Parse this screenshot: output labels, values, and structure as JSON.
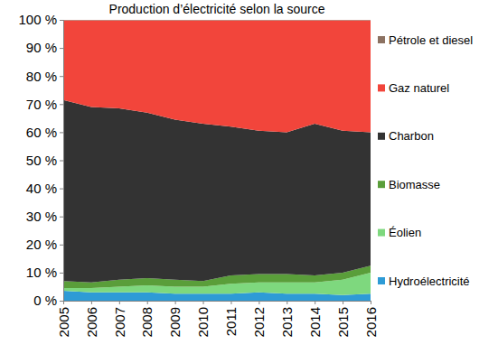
{
  "chart_data": {
    "type": "area",
    "title": "Production d’électricité selon la source",
    "stacked": true,
    "legend": "right",
    "grid": false,
    "x": [
      2005,
      2006,
      2007,
      2008,
      2009,
      2010,
      2011,
      2012,
      2013,
      2014,
      2015,
      2016
    ],
    "xlim": [
      2005,
      2016
    ],
    "xticks": [
      2005,
      2006,
      2007,
      2008,
      2009,
      2010,
      2011,
      2012,
      2013,
      2014,
      2015,
      2016
    ],
    "ylim": [
      0,
      100
    ],
    "yticks": [
      {
        "value": 0,
        "label": "0 %"
      },
      {
        "value": 10,
        "label": "10 %"
      },
      {
        "value": 20,
        "label": "20 %"
      },
      {
        "value": 30,
        "label": "30 %"
      },
      {
        "value": 40,
        "label": "40 %"
      },
      {
        "value": 50,
        "label": "50 %"
      },
      {
        "value": 60,
        "label": "60 %"
      },
      {
        "value": 70,
        "label": "70 %"
      },
      {
        "value": 80,
        "label": "80 %"
      },
      {
        "value": 90,
        "label": "90 %"
      },
      {
        "value": 100,
        "label": "100 %"
      }
    ],
    "series": [
      {
        "name": "Hydroélectricité",
        "color": "#2e9bd6",
        "values": [
          3.5,
          3,
          3,
          3,
          2.5,
          2.5,
          2.5,
          3,
          2.5,
          2.5,
          2,
          2.5
        ]
      },
      {
        "name": "Éolien",
        "color": "#7ed87e",
        "values": [
          1,
          1.5,
          2,
          2.5,
          2.5,
          2.5,
          3.5,
          3.5,
          4,
          4,
          5.5,
          7.5
        ]
      },
      {
        "name": "Biomasse",
        "color": "#5a9e3a",
        "values": [
          2.5,
          2,
          2.5,
          2.5,
          2.5,
          2,
          3,
          3,
          3,
          2.5,
          2.5,
          2.5
        ]
      },
      {
        "name": "Charbon",
        "color": "#333333",
        "values": [
          64.5,
          62.5,
          61,
          59,
          57,
          56,
          53,
          51,
          50.5,
          54,
          50.5,
          47.5
        ]
      },
      {
        "name": "Gaz naturel",
        "color": "#f2453b",
        "values": [
          28.3,
          30.8,
          31.3,
          32.8,
          35.3,
          36.8,
          37.8,
          39.3,
          39.8,
          36.8,
          39.3,
          39.8
        ]
      },
      {
        "name": "Pétrole et diesel",
        "color": "#8c7262",
        "values": [
          0.2,
          0.2,
          0.2,
          0.2,
          0.2,
          0.2,
          0.2,
          0.2,
          0.2,
          0.2,
          0.2,
          0.2
        ]
      }
    ]
  }
}
